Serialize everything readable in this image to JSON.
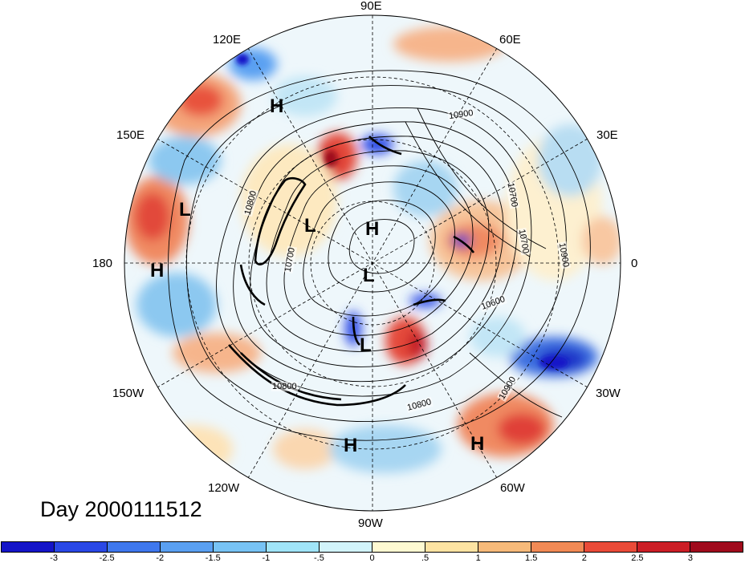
{
  "date_text": "Day 2000111512",
  "longitude_labels": {
    "e90": "90E",
    "e60": "60E",
    "e30": "30E",
    "lon0": "0",
    "w30": "30W",
    "w60": "60W",
    "w90": "90W",
    "w120": "120W",
    "w150": "150W",
    "lon180": "180",
    "e150": "150E",
    "e120": "120E"
  },
  "pressure_centers": [
    {
      "id": "h1",
      "label": "H"
    },
    {
      "id": "l1",
      "label": "L"
    },
    {
      "id": "h2",
      "label": "H"
    },
    {
      "id": "l2",
      "label": "L"
    },
    {
      "id": "h3",
      "label": "H"
    },
    {
      "id": "l3",
      "label": "L"
    },
    {
      "id": "l4",
      "label": "L"
    },
    {
      "id": "h4",
      "label": "H"
    },
    {
      "id": "h5",
      "label": "H"
    }
  ],
  "contour_labels": [
    {
      "id": "c1",
      "text": "10900"
    },
    {
      "id": "c2",
      "text": "10700"
    },
    {
      "id": "c3",
      "text": "10800"
    },
    {
      "id": "c4",
      "text": "10700"
    },
    {
      "id": "c5",
      "text": "10900"
    },
    {
      "id": "c6",
      "text": "10600"
    },
    {
      "id": "c7",
      "text": "10800"
    },
    {
      "id": "c8",
      "text": "10900"
    },
    {
      "id": "c9",
      "text": "10800"
    },
    {
      "id": "c10",
      "text": "10700"
    }
  ],
  "colorbar": {
    "ticks": [
      "-3",
      "-2.5",
      "-2",
      "-1.5",
      "-1",
      "-.5",
      "0",
      ".5",
      "1",
      "1.5",
      "2",
      "2.5",
      "3"
    ],
    "colors": [
      "#1414c8",
      "#2a48e6",
      "#3f78ee",
      "#5aa0f2",
      "#78c3f5",
      "#a0e4f8",
      "#d2f4fb",
      "#fffad2",
      "#fde3a2",
      "#f7ba7a",
      "#f28a55",
      "#ea4b38",
      "#cc1e26",
      "#a00a1c"
    ]
  }
}
